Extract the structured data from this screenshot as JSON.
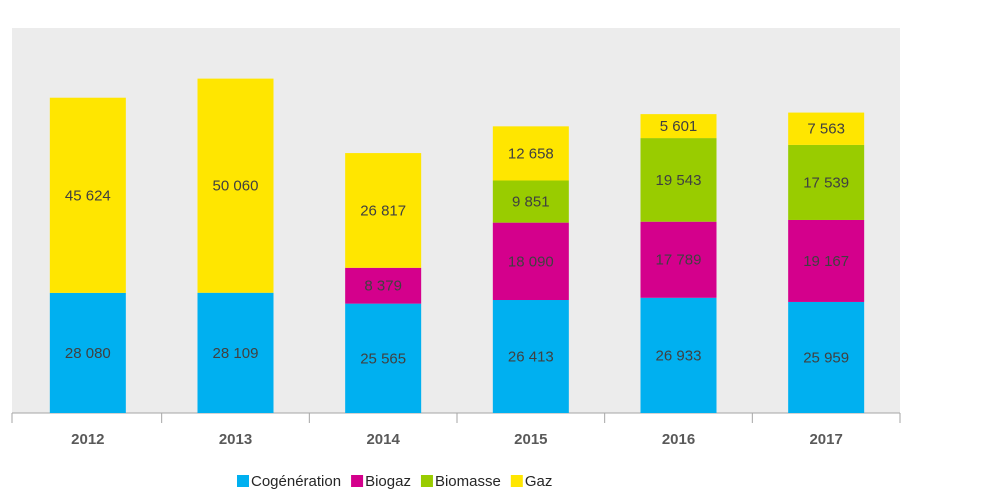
{
  "chart_data": {
    "type": "stacked_bar",
    "categories": [
      "2012",
      "2013",
      "2014",
      "2015",
      "2016",
      "2017"
    ],
    "series": [
      {
        "name": "Cogénération",
        "color": "#00b0f0",
        "values": [
          28080,
          28109,
          25565,
          26413,
          26933,
          25959
        ],
        "value_labels": [
          "28 080",
          "28 109",
          "25 565",
          "26 413",
          "26 933",
          "25 959"
        ]
      },
      {
        "name": "Biogaz",
        "color": "#d4008c",
        "values": [
          null,
          null,
          8379,
          18090,
          17789,
          19167
        ],
        "value_labels": [
          null,
          null,
          "8 379",
          "18 090",
          "17 789",
          "19 167"
        ]
      },
      {
        "name": "Biomasse",
        "color": "#99cc00",
        "values": [
          null,
          null,
          null,
          9851,
          19543,
          17539
        ],
        "value_labels": [
          null,
          null,
          null,
          "9 851",
          "19 543",
          "17 539"
        ]
      },
      {
        "name": "Gaz",
        "color": "#ffe600",
        "values": [
          45624,
          50060,
          26817,
          12658,
          5601,
          7563
        ],
        "value_labels": [
          "45 624",
          "50 060",
          "26 817",
          "12 658",
          "5 601",
          "7 563"
        ]
      }
    ],
    "ylim": [
      0,
      90000
    ],
    "legend": "bottom"
  }
}
